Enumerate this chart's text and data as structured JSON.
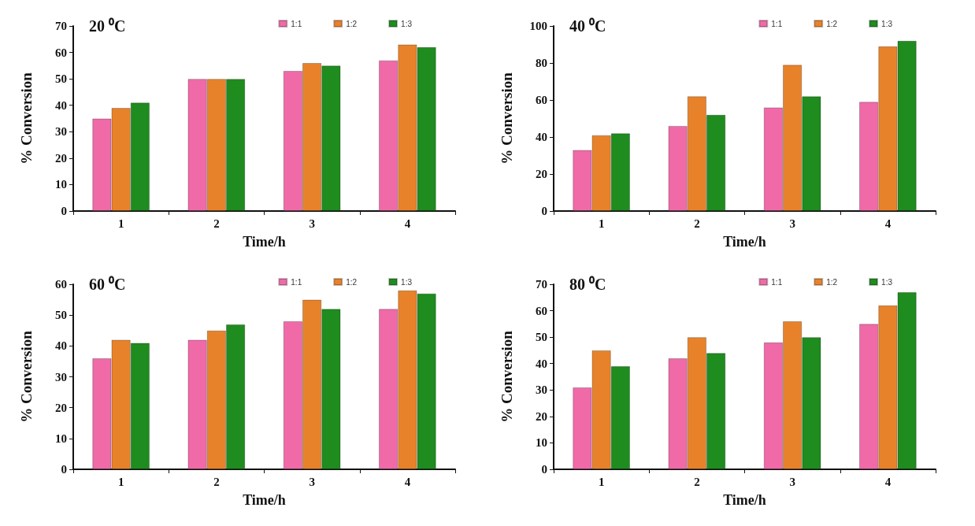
{
  "chart_data": [
    {
      "type": "bar",
      "title": "20 ⁰C",
      "xlabel": "Time/h",
      "ylabel": "% Conversion",
      "categories": [
        "1",
        "2",
        "3",
        "4"
      ],
      "ylim": [
        0,
        70
      ],
      "yticks": [
        0,
        10,
        20,
        30,
        40,
        50,
        60,
        70
      ],
      "legend": "top right",
      "grid": false,
      "series": [
        {
          "name": "1:1",
          "color": "#f06aa8",
          "values": [
            35,
            50,
            53,
            57
          ]
        },
        {
          "name": "1:2",
          "color": "#e8822a",
          "values": [
            39,
            50,
            56,
            63
          ]
        },
        {
          "name": "1:3",
          "color": "#1e8c1e",
          "values": [
            41,
            50,
            55,
            62
          ]
        }
      ]
    },
    {
      "type": "bar",
      "title": "40 ⁰C",
      "xlabel": "Time/h",
      "ylabel": "% Conversion",
      "categories": [
        "1",
        "2",
        "3",
        "4"
      ],
      "ylim": [
        0,
        100
      ],
      "yticks": [
        0,
        20,
        40,
        60,
        80,
        100
      ],
      "legend": "top right",
      "grid": false,
      "series": [
        {
          "name": "1:1",
          "color": "#f06aa8",
          "values": [
            33,
            46,
            56,
            59
          ]
        },
        {
          "name": "1:2",
          "color": "#e8822a",
          "values": [
            41,
            62,
            79,
            89
          ]
        },
        {
          "name": "1:3",
          "color": "#1e8c1e",
          "values": [
            42,
            52,
            62,
            92
          ]
        }
      ]
    },
    {
      "type": "bar",
      "title": "60 ⁰C",
      "xlabel": "Time/h",
      "ylabel": "% Conversion",
      "categories": [
        "1",
        "2",
        "3",
        "4"
      ],
      "ylim": [
        0,
        60
      ],
      "yticks": [
        0,
        10,
        20,
        30,
        40,
        50,
        60
      ],
      "legend": "top right",
      "grid": false,
      "series": [
        {
          "name": "1:1",
          "color": "#f06aa8",
          "values": [
            36,
            42,
            48,
            52
          ]
        },
        {
          "name": "1:2",
          "color": "#e8822a",
          "values": [
            42,
            45,
            55,
            58
          ]
        },
        {
          "name": "1:3",
          "color": "#1e8c1e",
          "values": [
            41,
            47,
            52,
            57
          ]
        }
      ]
    },
    {
      "type": "bar",
      "title": "80 ⁰C",
      "xlabel": "Time/h",
      "ylabel": "% Conversion",
      "categories": [
        "1",
        "2",
        "3",
        "4"
      ],
      "ylim": [
        0,
        70
      ],
      "yticks": [
        0,
        10,
        20,
        30,
        40,
        50,
        60,
        70
      ],
      "legend": "top right",
      "grid": false,
      "series": [
        {
          "name": "1:1",
          "color": "#f06aa8",
          "values": [
            31,
            42,
            48,
            55
          ]
        },
        {
          "name": "1:2",
          "color": "#e8822a",
          "values": [
            45,
            50,
            56,
            62
          ]
        },
        {
          "name": "1:3",
          "color": "#1e8c1e",
          "values": [
            39,
            44,
            50,
            67
          ]
        }
      ]
    }
  ]
}
